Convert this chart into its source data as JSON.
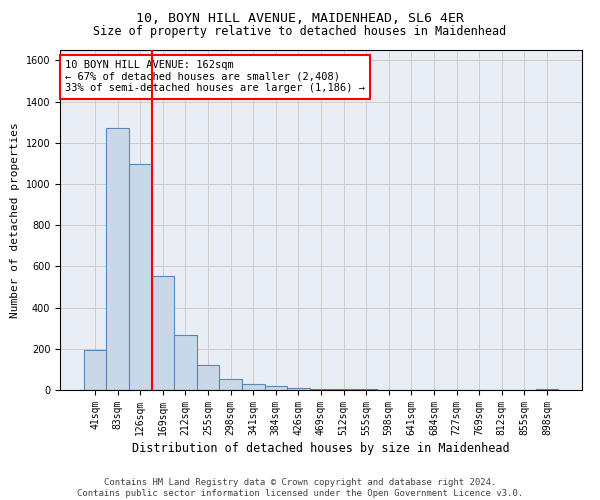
{
  "title": "10, BOYN HILL AVENUE, MAIDENHEAD, SL6 4ER",
  "subtitle": "Size of property relative to detached houses in Maidenhead",
  "xlabel": "Distribution of detached houses by size in Maidenhead",
  "ylabel": "Number of detached properties",
  "categories": [
    "41sqm",
    "83sqm",
    "126sqm",
    "169sqm",
    "212sqm",
    "255sqm",
    "298sqm",
    "341sqm",
    "384sqm",
    "426sqm",
    "469sqm",
    "512sqm",
    "555sqm",
    "598sqm",
    "641sqm",
    "684sqm",
    "727sqm",
    "769sqm",
    "812sqm",
    "855sqm",
    "898sqm"
  ],
  "values": [
    195,
    1270,
    1095,
    555,
    265,
    120,
    55,
    30,
    20,
    10,
    5,
    5,
    3,
    2,
    2,
    1,
    1,
    0,
    0,
    0,
    5
  ],
  "bar_color": "#c8d8e8",
  "bar_edge_color": "#5588bb",
  "vline_pos": 2.5,
  "vline_color": "red",
  "annotation_text": "10 BOYN HILL AVENUE: 162sqm\n← 67% of detached houses are smaller (2,408)\n33% of semi-detached houses are larger (1,186) →",
  "annotation_box_color": "white",
  "annotation_box_edge_color": "red",
  "ylim": [
    0,
    1650
  ],
  "yticks": [
    0,
    200,
    400,
    600,
    800,
    1000,
    1200,
    1400,
    1600
  ],
  "grid_color": "#cccccc",
  "bg_color": "#e8eef4",
  "footer": "Contains HM Land Registry data © Crown copyright and database right 2024.\nContains public sector information licensed under the Open Government Licence v3.0.",
  "title_fontsize": 9.5,
  "subtitle_fontsize": 8.5,
  "xlabel_fontsize": 8.5,
  "ylabel_fontsize": 8,
  "tick_fontsize": 7,
  "annotation_fontsize": 7.5,
  "footer_fontsize": 6.5
}
